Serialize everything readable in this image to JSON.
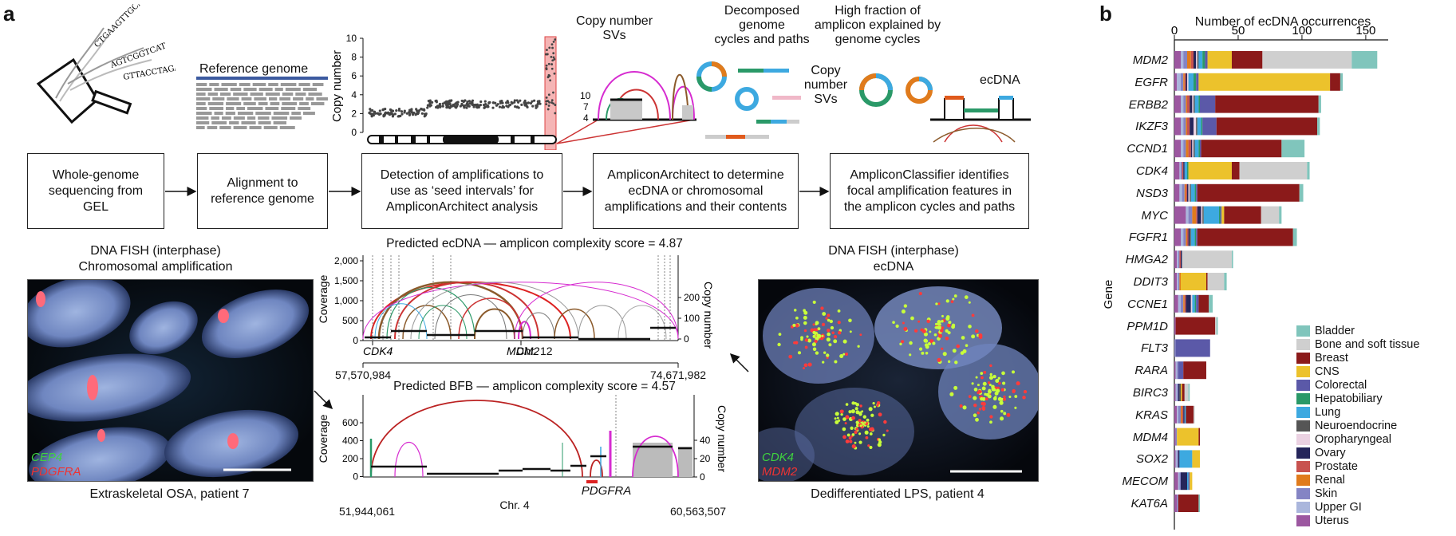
{
  "panel_a": {
    "letter": "a",
    "reads": [
      "CTGAAGTTGCA",
      "AGTCGGTCAT",
      "GTTACCTAGAGG"
    ],
    "reference_genome": "Reference genome",
    "copy_number_axis": {
      "label": "Copy number",
      "ticks": [
        "10",
        "8",
        "6",
        "4",
        "2",
        "0"
      ]
    },
    "copy_number_svs_top": "Copy number\nSVs",
    "zoom_ticks": [
      "10",
      "7",
      "4"
    ],
    "decomposed": "Decomposed\ngenome\ncycles and paths",
    "high_fraction": "High fraction of\namplicon explained by\ngenome cycles",
    "copy_number_svs_side": "Copy\nnumber\nSVs",
    "ecdna_label": "ecDNA",
    "steps": [
      "Whole-genome sequencing from GEL",
      "Alignment to reference genome",
      "Detection of amplifications to use as ‘seed intervals’ for AmpliconArchitect analysis",
      "AmpliconArchitect to determine ecDNA or chromosomal amplifications and their contents",
      "AmpliconClassifier identifies focal amplification features in the amplicon cycles and paths"
    ],
    "fish_left": {
      "title": "DNA FISH (interphase)\nChromosomal amplification",
      "probes": [
        "CEP4",
        "PDGFRA"
      ],
      "caption": "Extraskeletal OSA, patient 7"
    },
    "fish_right": {
      "title": "DNA FISH (interphase)\necDNA",
      "probes": [
        "CDK4",
        "MDM2"
      ],
      "caption": "Dedifferentiated LPS, patient 4"
    },
    "ecdna_plot": {
      "title": "Predicted ecDNA — amplicon complexity score = 4.87",
      "coverage_label": "Coverage",
      "coverage_ticks": [
        "2,000",
        "1,500",
        "1,000",
        "500",
        "0"
      ],
      "copy_label": "Copy number",
      "copy_ticks": [
        "200",
        "100",
        "0"
      ],
      "genes": [
        "CDK4",
        "MDM2"
      ],
      "chromosome": "Chr. 12",
      "start": "57,570,984",
      "end": "74,671,982"
    },
    "bfb_plot": {
      "title": "Predicted BFB — amplicon complexity score = 4.57",
      "coverage_label": "Coverage",
      "coverage_ticks": [
        "600",
        "400",
        "200",
        "0"
      ],
      "copy_label": "Copy number",
      "copy_ticks": [
        "40",
        "20",
        "0"
      ],
      "gene": "PDGFRA",
      "chromosome": "Chr. 4",
      "start": "51,944,061",
      "end": "60,563,507"
    }
  },
  "panel_b": {
    "letter": "b",
    "chart_data": {
      "type": "bar",
      "orientation": "horizontal",
      "stacked": true,
      "title": "Number of ecDNA occurrences",
      "xlabel": "Number of ecDNA occurrences",
      "ylabel": "Gene",
      "xlim": [
        0,
        160
      ],
      "xticks": [
        "0",
        "50",
        "100",
        "150"
      ],
      "legend_position": "bottom-right",
      "categories": [
        "MDM2",
        "EGFR",
        "ERBB2",
        "IKZF3",
        "CCND1",
        "CDK4",
        "NSD3",
        "MYC",
        "FGFR1",
        "HMGA2",
        "DDIT3",
        "CCNE1",
        "PPM1D",
        "FLT3",
        "RARA",
        "BIRC3",
        "KRAS",
        "MDM4",
        "SOX2",
        "MECOM",
        "KAT6A"
      ],
      "series": [
        {
          "name": "Uterus",
          "color": "#9c57a0",
          "values": [
            5,
            2,
            5,
            5,
            5,
            4,
            4,
            9,
            5,
            2,
            2,
            3,
            1,
            0,
            1,
            1,
            2,
            1,
            1,
            3,
            2
          ]
        },
        {
          "name": "Upper GI",
          "color": "#aab6dc",
          "values": [
            2,
            3,
            2,
            2,
            2,
            1,
            2,
            2,
            2,
            1,
            1,
            2,
            0,
            0,
            1,
            1,
            1,
            0,
            1,
            1,
            0
          ]
        },
        {
          "name": "Skin",
          "color": "#8484c4",
          "values": [
            3,
            2,
            2,
            2,
            2,
            1,
            2,
            3,
            2,
            1,
            1,
            2,
            0,
            1,
            1,
            1,
            2,
            1,
            1,
            1,
            1
          ]
        },
        {
          "name": "Renal",
          "color": "#e07b1c",
          "values": [
            3,
            1,
            1,
            1,
            2,
            0,
            1,
            3,
            1,
            0,
            1,
            1,
            0,
            0,
            0,
            0,
            1,
            0,
            0,
            0,
            0
          ]
        },
        {
          "name": "Prostate",
          "color": "#c8524f",
          "values": [
            2,
            1,
            2,
            2,
            2,
            1,
            1,
            1,
            1,
            1,
            0,
            1,
            0,
            0,
            0,
            0,
            1,
            0,
            0,
            0,
            0
          ]
        },
        {
          "name": "Ovary",
          "color": "#25255a",
          "values": [
            2,
            1,
            2,
            3,
            1,
            1,
            1,
            3,
            1,
            1,
            0,
            4,
            0,
            0,
            0,
            1,
            1,
            0,
            1,
            5,
            0
          ]
        },
        {
          "name": "Oropharyngeal",
          "color": "#ebd2e2",
          "values": [
            1,
            1,
            1,
            2,
            1,
            0,
            1,
            1,
            0,
            0,
            0,
            1,
            0,
            0,
            0,
            0,
            0,
            0,
            0,
            0,
            0
          ]
        },
        {
          "name": "Neuroendocrine",
          "color": "#555555",
          "values": [
            1,
            0,
            1,
            1,
            1,
            0,
            1,
            1,
            1,
            0,
            0,
            0,
            0,
            0,
            0,
            1,
            0,
            0,
            0,
            0,
            0
          ]
        },
        {
          "name": "Lung",
          "color": "#3da9e0",
          "values": [
            3,
            4,
            3,
            3,
            3,
            2,
            3,
            12,
            3,
            0,
            0,
            2,
            0,
            0,
            0,
            0,
            1,
            0,
            10,
            1,
            0
          ]
        },
        {
          "name": "Hepatobiliary",
          "color": "#2a9968",
          "values": [
            2,
            2,
            1,
            1,
            1,
            1,
            1,
            1,
            1,
            0,
            0,
            1,
            0,
            0,
            0,
            0,
            0,
            0,
            0,
            0,
            0
          ]
        },
        {
          "name": "Colorectal",
          "color": "#5b59a8",
          "values": [
            2,
            2,
            12,
            11,
            1,
            0,
            1,
            1,
            1,
            0,
            0,
            2,
            0,
            27,
            4,
            0,
            0,
            0,
            0,
            1,
            0
          ]
        },
        {
          "name": "CNS",
          "color": "#ecc22c",
          "values": [
            19,
            103,
            0,
            0,
            0,
            34,
            0,
            2,
            0,
            0,
            20,
            0,
            0,
            0,
            0,
            1,
            0,
            17,
            6,
            2,
            0
          ]
        },
        {
          "name": "Breast",
          "color": "#8b1a1a",
          "values": [
            24,
            8,
            81,
            79,
            63,
            6,
            80,
            29,
            75,
            0,
            1,
            8,
            31,
            0,
            18,
            2,
            6,
            1,
            0,
            0,
            16
          ]
        },
        {
          "name": "Bone and soft tissue",
          "color": "#cfcfcf",
          "values": [
            70,
            0,
            0,
            0,
            0,
            53,
            0,
            14,
            0,
            39,
            13,
            0,
            1,
            0,
            0,
            3,
            1,
            0,
            0,
            0,
            0
          ]
        },
        {
          "name": "Bladder",
          "color": "#80c5bc",
          "values": [
            20,
            2,
            2,
            2,
            18,
            2,
            3,
            2,
            3,
            1,
            2,
            3,
            1,
            0,
            0,
            1,
            0,
            0,
            0,
            0,
            1
          ]
        }
      ]
    }
  }
}
